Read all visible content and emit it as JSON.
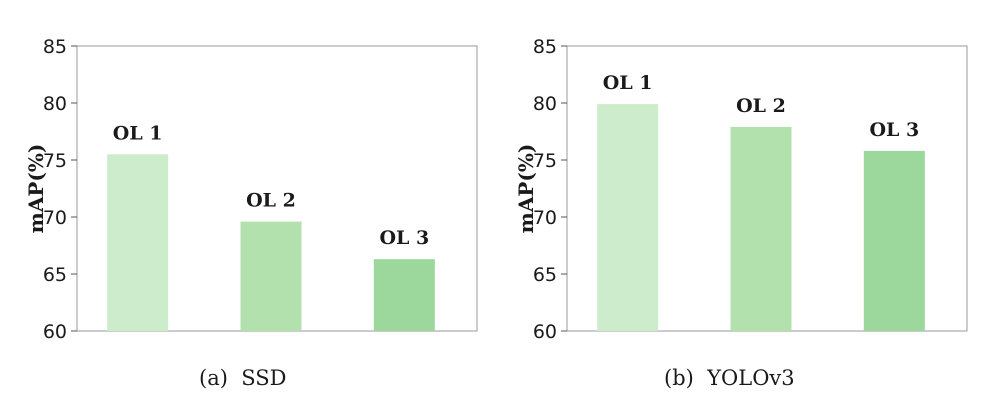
{
  "chart_data": [
    {
      "type": "bar",
      "caption": "(a)  SSD",
      "categories": [
        "OL 1",
        "OL 2",
        "OL 3"
      ],
      "values": [
        75.5,
        69.6,
        66.3
      ],
      "ylabel": "mAP(%)",
      "xlabel": "",
      "ylim": [
        60,
        85
      ],
      "yticks": [
        60,
        65,
        70,
        75,
        80,
        85
      ],
      "grid": false,
      "bar_colors": [
        "#cdeccb",
        "#b2e1ad",
        "#9cd79b"
      ]
    },
    {
      "type": "bar",
      "caption": "(b)  YOLOv3",
      "categories": [
        "OL 1",
        "OL 2",
        "OL 3"
      ],
      "values": [
        79.9,
        77.9,
        75.8
      ],
      "ylabel": "mAP(%)",
      "xlabel": "",
      "ylim": [
        60,
        85
      ],
      "yticks": [
        60,
        65,
        70,
        75,
        80,
        85
      ],
      "grid": false,
      "bar_colors": [
        "#cdeccb",
        "#b2e1ad",
        "#9cd79b"
      ]
    }
  ]
}
